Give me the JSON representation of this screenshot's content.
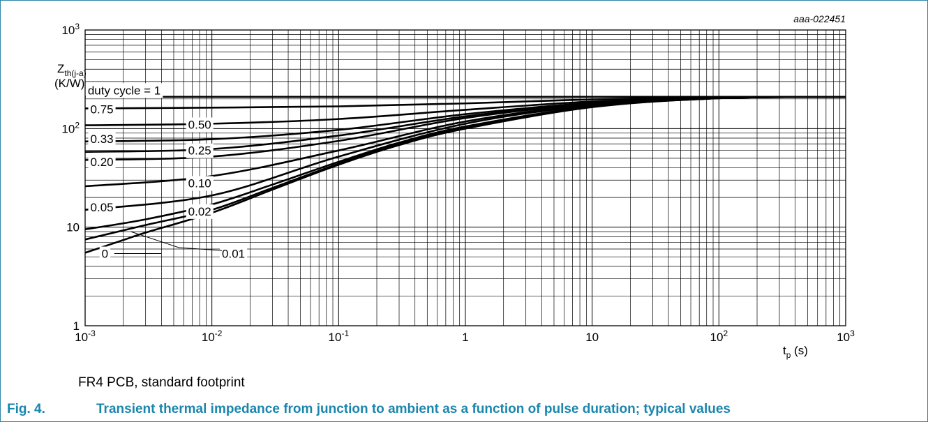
{
  "figure": {
    "id_text": "aaa-022451",
    "note": "FR4 PCB, standard footprint",
    "caption_number": "Fig. 4.",
    "caption_text": "Transient thermal impedance from junction to ambient as a function of pulse duration; typical values"
  },
  "colors": {
    "caption": "#1a86ae",
    "frame": "#2e86a8",
    "curve": "#000000",
    "grid": "#000000"
  },
  "chart_data": {
    "type": "line",
    "x_scale": "log",
    "y_scale": "log",
    "xlim": [
      0.001,
      1000
    ],
    "ylim": [
      1,
      1000
    ],
    "grid": true,
    "xlabel": {
      "base": "t",
      "sub": "p",
      "unit": " (s)"
    },
    "ylabel": {
      "base": "Z",
      "sub": "th(j-a)",
      "unit": "(K/W)"
    },
    "x_ticks": [
      {
        "base": "10",
        "exp": "-3"
      },
      {
        "base": "10",
        "exp": "-2"
      },
      {
        "base": "10",
        "exp": "-1"
      },
      {
        "base": "1",
        "exp": ""
      },
      {
        "base": "10",
        "exp": ""
      },
      {
        "base": "10",
        "exp": "2"
      },
      {
        "base": "10",
        "exp": "3"
      }
    ],
    "y_ticks": [
      {
        "base": "1",
        "exp": ""
      },
      {
        "base": "10",
        "exp": ""
      },
      {
        "base": "10",
        "exp": "2"
      },
      {
        "base": "10",
        "exp": "3"
      }
    ],
    "series": [
      {
        "name": "duty cycle = 1",
        "label_at": [
          0.00105,
          245
        ],
        "points": [
          [
            0.001,
            210
          ],
          [
            1000,
            210
          ]
        ]
      },
      {
        "name": "0.75",
        "label_at": [
          0.0011,
          158
        ],
        "points": [
          [
            0.001,
            160
          ],
          [
            0.01,
            163
          ],
          [
            0.1,
            168
          ],
          [
            1,
            180
          ],
          [
            10,
            198
          ],
          [
            100,
            208
          ],
          [
            1000,
            210
          ]
        ]
      },
      {
        "name": "0.50",
        "label_at": [
          0.0065,
          110
        ],
        "points": [
          [
            0.001,
            108
          ],
          [
            0.01,
            112
          ],
          [
            0.1,
            125
          ],
          [
            1,
            155
          ],
          [
            10,
            188
          ],
          [
            100,
            207
          ],
          [
            1000,
            210
          ]
        ]
      },
      {
        "name": "0.33",
        "label_at": [
          0.0011,
          79
        ],
        "points": [
          [
            0.001,
            74
          ],
          [
            0.01,
            78
          ],
          [
            0.1,
            97
          ],
          [
            1,
            140
          ],
          [
            10,
            182
          ],
          [
            100,
            206
          ],
          [
            1000,
            210
          ]
        ]
      },
      {
        "name": "0.25",
        "label_at": [
          0.0065,
          60
        ],
        "points": [
          [
            0.001,
            58
          ],
          [
            0.01,
            62
          ],
          [
            0.1,
            85
          ],
          [
            1,
            133
          ],
          [
            10,
            180
          ],
          [
            100,
            205
          ],
          [
            1000,
            210
          ]
        ]
      },
      {
        "name": "0.20",
        "label_at": [
          0.0011,
          46
        ],
        "points": [
          [
            0.001,
            48
          ],
          [
            0.01,
            52
          ],
          [
            0.1,
            75
          ],
          [
            1,
            128
          ],
          [
            10,
            178
          ],
          [
            100,
            205
          ],
          [
            1000,
            210
          ]
        ]
      },
      {
        "name": "0.10",
        "label_at": [
          0.0065,
          28
        ],
        "points": [
          [
            0.001,
            26
          ],
          [
            0.01,
            33
          ],
          [
            0.1,
            60
          ],
          [
            1,
            118
          ],
          [
            10,
            175
          ],
          [
            100,
            204
          ],
          [
            1000,
            210
          ]
        ]
      },
      {
        "name": "0.05",
        "label_at": [
          0.0011,
          16
        ],
        "points": [
          [
            0.001,
            15
          ],
          [
            0.01,
            21
          ],
          [
            0.1,
            52
          ],
          [
            1,
            112
          ],
          [
            10,
            172
          ],
          [
            100,
            204
          ],
          [
            1000,
            210
          ]
        ]
      },
      {
        "name": "0.02",
        "label_at": [
          0.0065,
          14.5
        ],
        "points": [
          [
            0.001,
            9.5
          ],
          [
            0.003,
            12
          ],
          [
            0.01,
            17
          ],
          [
            0.03,
            27
          ],
          [
            0.1,
            46
          ],
          [
            0.3,
            72
          ],
          [
            1,
            105
          ],
          [
            10,
            168
          ],
          [
            100,
            203
          ],
          [
            1000,
            210
          ]
        ]
      },
      {
        "name": "0.01",
        "label_at": [
          0.012,
          5.4
        ],
        "points": [
          [
            0.001,
            7.5
          ],
          [
            0.003,
            10.5
          ],
          [
            0.01,
            15
          ],
          [
            0.03,
            25
          ],
          [
            0.1,
            44
          ],
          [
            0.3,
            70
          ],
          [
            1,
            103
          ],
          [
            10,
            166
          ],
          [
            100,
            203
          ],
          [
            1000,
            210
          ]
        ]
      },
      {
        "name": "0",
        "label_at": [
          0.00135,
          5.4
        ],
        "points": [
          [
            0.001,
            5.5
          ],
          [
            0.002,
            7.4
          ],
          [
            0.003,
            8.8
          ],
          [
            0.01,
            14
          ],
          [
            0.03,
            24
          ],
          [
            0.1,
            43
          ],
          [
            0.3,
            68
          ],
          [
            1,
            100
          ],
          [
            10,
            165
          ],
          [
            100,
            203
          ],
          [
            1000,
            210
          ]
        ]
      }
    ]
  }
}
